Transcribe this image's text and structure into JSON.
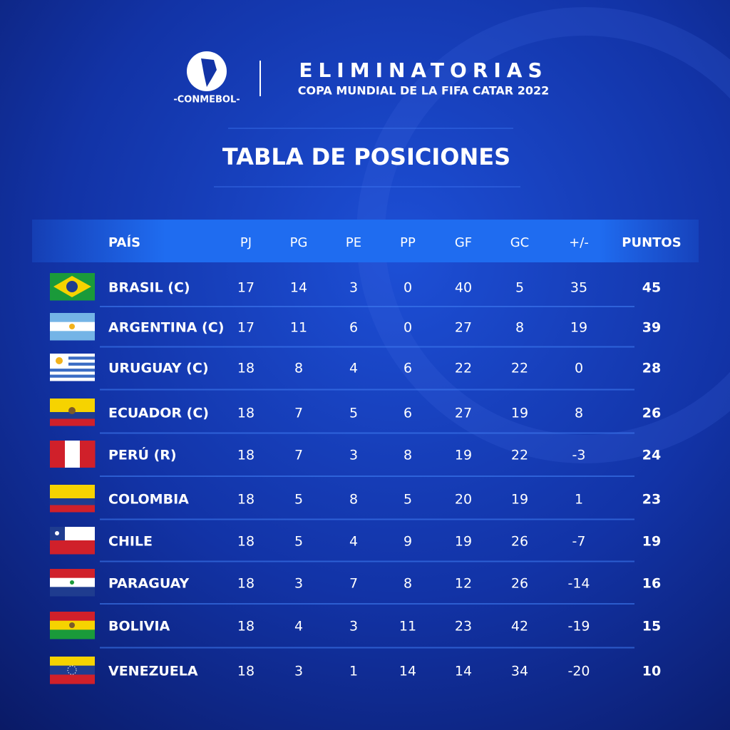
{
  "header": {
    "logo_text": "-CONMEBOL-",
    "title": "ELIMINATORIAS",
    "subtitle": "COPA MUNDIAL DE LA FIFA CATAR 2022"
  },
  "heading": "TABLA DE POSICIONES",
  "table": {
    "columns": [
      "PAÍS",
      "PJ",
      "PG",
      "PE",
      "PP",
      "GF",
      "GC",
      "+/-",
      "PUNTOS"
    ],
    "rows": [
      [
        "BRASIL (C)",
        17,
        14,
        3,
        0,
        40,
        5,
        35,
        45
      ],
      [
        "ARGENTINA (C)",
        17,
        11,
        6,
        0,
        27,
        8,
        19,
        39
      ],
      [
        "URUGUAY (C)",
        18,
        8,
        4,
        6,
        22,
        22,
        0,
        28
      ],
      [
        "ECUADOR (C)",
        18,
        7,
        5,
        6,
        27,
        19,
        8,
        26
      ],
      [
        "PERÚ (R)",
        18,
        7,
        3,
        8,
        19,
        22,
        -3,
        24
      ],
      [
        "COLOMBIA",
        18,
        5,
        8,
        5,
        20,
        19,
        1,
        23
      ],
      [
        "CHILE",
        18,
        5,
        4,
        9,
        19,
        26,
        -7,
        19
      ],
      [
        "PARAGUAY",
        18,
        3,
        7,
        8,
        12,
        26,
        -14,
        16
      ],
      [
        "BOLIVIA",
        18,
        4,
        3,
        11,
        23,
        42,
        -19,
        15
      ],
      [
        "VENEZUELA",
        18,
        3,
        1,
        14,
        14,
        34,
        -20,
        10
      ]
    ]
  }
}
